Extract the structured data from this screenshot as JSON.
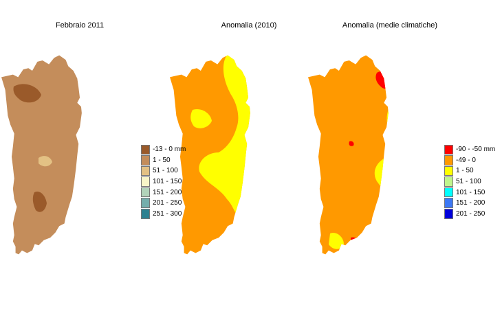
{
  "panels": [
    {
      "title": "Febbraio 2011",
      "legend": [
        {
          "label": "-13 - 0 mm",
          "color": "#9a5a2a"
        },
        {
          "label": "1 - 50",
          "color": "#c48d5b"
        },
        {
          "label": "51 - 100",
          "color": "#e3c184"
        },
        {
          "label": "101 - 150",
          "color": "#f8f5c8"
        },
        {
          "label": "151 - 200",
          "color": "#b2d3ba"
        },
        {
          "label": "201 - 250",
          "color": "#75aeac"
        },
        {
          "label": "251 - 300",
          "color": "#2e8190"
        }
      ]
    },
    {
      "title": "Anomalia (2010)",
      "legend": []
    },
    {
      "title": "Anomalia (medie climatiche)",
      "legend": [
        {
          "label": "-90 - -50 mm",
          "color": "#ff0000"
        },
        {
          "label": "-49 - 0",
          "color": "#ff9900"
        },
        {
          "label": "1 - 50",
          "color": "#ffff00"
        },
        {
          "label": "51 - 100",
          "color": "#c0f58c"
        },
        {
          "label": "101 - 150",
          "color": "#00ffff"
        },
        {
          "label": "151 - 200",
          "color": "#3c78f5"
        },
        {
          "label": "201 - 250",
          "color": "#0000dc"
        }
      ]
    }
  ]
}
